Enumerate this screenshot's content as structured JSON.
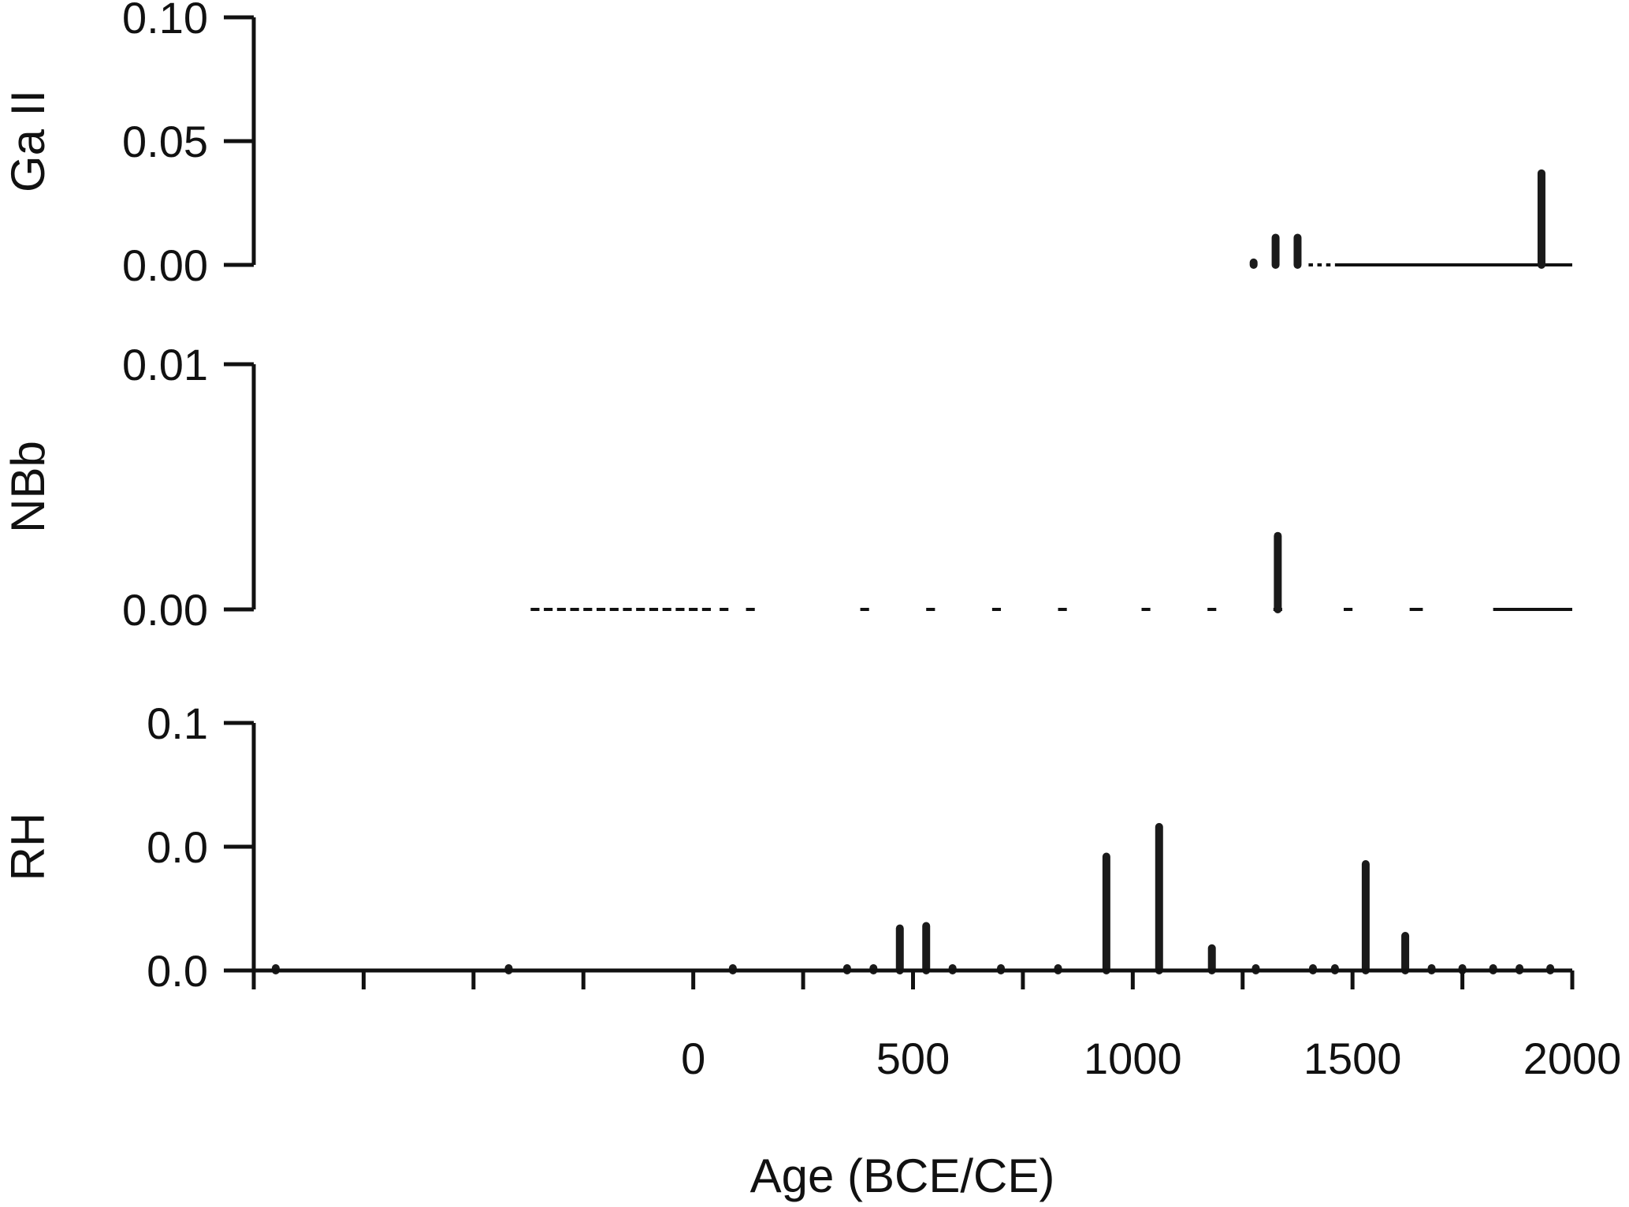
{
  "chart_data": {
    "type": "bar",
    "xlabel": "Age (BCE/CE)",
    "xlim": [
      -1000,
      2000
    ],
    "x_tick_values": [
      -1000,
      -750,
      -500,
      -250,
      0,
      250,
      500,
      750,
      1000,
      1250,
      1500,
      1750,
      2000
    ],
    "x_tick_labels": [
      {
        "value": 0,
        "label": "0"
      },
      {
        "value": 500,
        "label": "500"
      },
      {
        "value": 1000,
        "label": "1000"
      },
      {
        "value": 1500,
        "label": "1500"
      },
      {
        "value": 2000,
        "label": "2000"
      }
    ],
    "panels": [
      {
        "ylabel": "Ga II",
        "ylim": [
          0,
          0.1
        ],
        "y_ticks": [
          {
            "value": 0.1,
            "label": "0.10"
          },
          {
            "value": 0.05,
            "label": "0.05"
          },
          {
            "value": 0.0,
            "label": "0.00"
          }
        ],
        "baseline_segments": [
          [
            1270,
            1280
          ],
          [
            1320,
            1330
          ],
          [
            1370,
            1380
          ],
          [
            1400,
            1410
          ],
          [
            1420,
            1430
          ],
          [
            1440,
            1450
          ],
          [
            1460,
            2000
          ]
        ],
        "bars": [
          {
            "x": 1275,
            "value": 0.001
          },
          {
            "x": 1325,
            "value": 0.011
          },
          {
            "x": 1375,
            "value": 0.011
          },
          {
            "x": 1930,
            "value": 0.037
          }
        ]
      },
      {
        "ylabel": "NBb",
        "ylim": [
          0,
          0.01
        ],
        "y_ticks": [
          {
            "value": 0.01,
            "label": "0.01"
          },
          {
            "value": 0.0,
            "label": "0.00"
          }
        ],
        "baseline_segments": [
          [
            -370,
            -350
          ],
          [
            -340,
            -320
          ],
          [
            -310,
            -290
          ],
          [
            -280,
            -260
          ],
          [
            -250,
            -230
          ],
          [
            -220,
            -200
          ],
          [
            -190,
            -170
          ],
          [
            -160,
            -140
          ],
          [
            -130,
            -110
          ],
          [
            -100,
            -80
          ],
          [
            -70,
            -50
          ],
          [
            -40,
            -20
          ],
          [
            -10,
            10
          ],
          [
            20,
            40
          ],
          [
            60,
            80
          ],
          [
            120,
            140
          ],
          [
            380,
            400
          ],
          [
            530,
            550
          ],
          [
            680,
            700
          ],
          [
            830,
            850
          ],
          [
            1020,
            1040
          ],
          [
            1170,
            1190
          ],
          [
            1320,
            1340
          ],
          [
            1480,
            1500
          ],
          [
            1630,
            1660
          ],
          [
            1820,
            2000
          ]
        ],
        "bars": [
          {
            "x": 1330,
            "value": 0.003
          }
        ]
      },
      {
        "ylabel": "RH",
        "ylim": [
          0,
          0.1
        ],
        "y_ticks": [
          {
            "value": 0.1,
            "label": "0.1"
          },
          {
            "value": 0.05,
            "label": "0.0"
          },
          {
            "value": 0.0,
            "label": "0.0"
          }
        ],
        "baseline_segments": [
          [
            -1000,
            2000
          ]
        ],
        "bars": [
          {
            "x": -950,
            "value": 0.0008
          },
          {
            "x": -420,
            "value": 0.0008
          },
          {
            "x": 90,
            "value": 0.0008
          },
          {
            "x": 350,
            "value": 0.0008
          },
          {
            "x": 410,
            "value": 0.0008
          },
          {
            "x": 470,
            "value": 0.017
          },
          {
            "x": 530,
            "value": 0.018
          },
          {
            "x": 590,
            "value": 0.0008
          },
          {
            "x": 700,
            "value": 0.0008
          },
          {
            "x": 830,
            "value": 0.0008
          },
          {
            "x": 940,
            "value": 0.046
          },
          {
            "x": 1060,
            "value": 0.058
          },
          {
            "x": 1180,
            "value": 0.009
          },
          {
            "x": 1280,
            "value": 0.0008
          },
          {
            "x": 1410,
            "value": 0.0008
          },
          {
            "x": 1460,
            "value": 0.0008
          },
          {
            "x": 1530,
            "value": 0.043
          },
          {
            "x": 1620,
            "value": 0.014
          },
          {
            "x": 1680,
            "value": 0.0008
          },
          {
            "x": 1750,
            "value": 0.0008
          },
          {
            "x": 1820,
            "value": 0.0008
          },
          {
            "x": 1880,
            "value": 0.0008
          },
          {
            "x": 1950,
            "value": 0.0008
          }
        ]
      }
    ]
  }
}
